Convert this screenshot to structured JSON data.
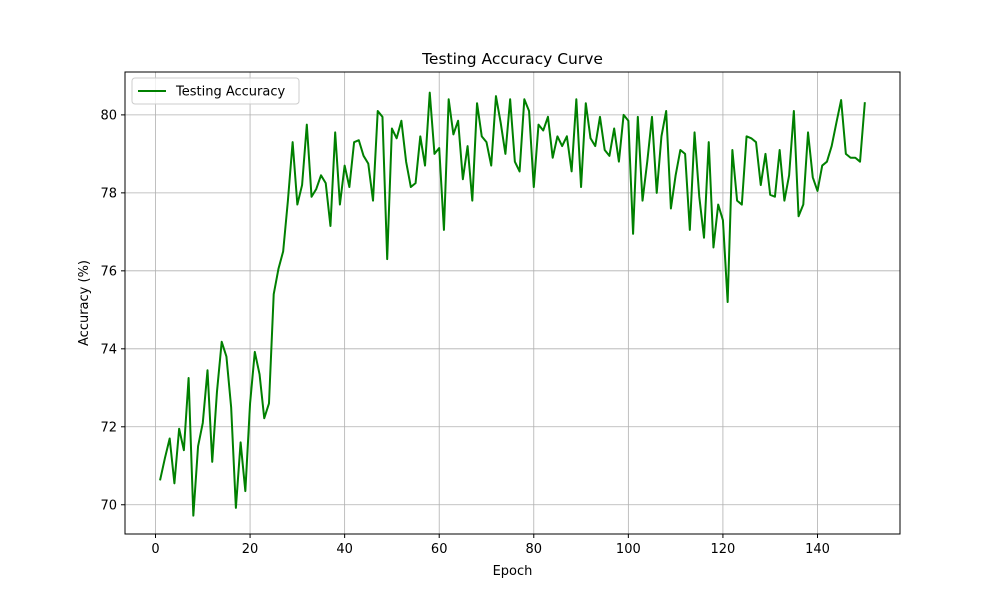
{
  "chart_data": {
    "type": "line",
    "title": "Testing Accuracy Curve",
    "xlabel": "Epoch",
    "ylabel": "Accuracy (%)",
    "xlim": [
      -6.45,
      157.45
    ],
    "ylim": [
      69.25,
      81.1
    ],
    "xticks": [
      0,
      20,
      40,
      60,
      80,
      100,
      120,
      140
    ],
    "yticks": [
      70,
      72,
      74,
      76,
      78,
      80
    ],
    "grid": true,
    "legend_position": "upper-left",
    "series": [
      {
        "name": "Testing Accuracy",
        "color": "#008000",
        "x": [
          1,
          2,
          3,
          4,
          5,
          6,
          7,
          8,
          9,
          10,
          11,
          12,
          13,
          14,
          15,
          16,
          17,
          18,
          19,
          20,
          21,
          22,
          23,
          24,
          25,
          26,
          27,
          28,
          29,
          30,
          31,
          32,
          33,
          34,
          35,
          36,
          37,
          38,
          39,
          40,
          41,
          42,
          43,
          44,
          45,
          46,
          47,
          48,
          49,
          50,
          51,
          52,
          53,
          54,
          55,
          56,
          57,
          58,
          59,
          60,
          61,
          62,
          63,
          64,
          65,
          66,
          67,
          68,
          69,
          70,
          71,
          72,
          73,
          74,
          75,
          76,
          77,
          78,
          79,
          80,
          81,
          82,
          83,
          84,
          85,
          86,
          87,
          88,
          89,
          90,
          91,
          92,
          93,
          94,
          95,
          96,
          97,
          98,
          99,
          100,
          101,
          102,
          103,
          104,
          105,
          106,
          107,
          108,
          109,
          110,
          111,
          112,
          113,
          114,
          115,
          116,
          117,
          118,
          119,
          120,
          121,
          122,
          123,
          124,
          125,
          126,
          127,
          128,
          129,
          130,
          131,
          132,
          133,
          134,
          135,
          136,
          137,
          138,
          139,
          140,
          141,
          142,
          143,
          144,
          145,
          146,
          147,
          148,
          149,
          150
        ],
        "y": [
          70.65,
          71.2,
          71.7,
          70.55,
          71.95,
          71.4,
          73.25,
          69.72,
          71.5,
          72.1,
          73.45,
          71.1,
          72.9,
          74.18,
          73.8,
          72.5,
          69.92,
          71.6,
          70.35,
          72.6,
          73.92,
          73.35,
          72.22,
          72.6,
          75.4,
          76.05,
          76.5,
          77.8,
          79.3,
          77.7,
          78.2,
          79.75,
          77.9,
          78.1,
          78.45,
          78.25,
          77.15,
          79.55,
          77.7,
          78.7,
          78.15,
          79.3,
          79.35,
          78.95,
          78.75,
          77.8,
          80.1,
          79.95,
          76.3,
          79.65,
          79.4,
          79.85,
          78.8,
          78.15,
          78.25,
          79.45,
          78.7,
          80.57,
          79.0,
          79.15,
          77.05,
          80.4,
          79.5,
          79.85,
          78.35,
          79.2,
          77.8,
          80.3,
          79.45,
          79.3,
          78.7,
          80.48,
          79.8,
          79.0,
          80.4,
          78.8,
          78.55,
          80.4,
          80.1,
          78.15,
          79.75,
          79.6,
          79.95,
          78.9,
          79.45,
          79.2,
          79.45,
          78.55,
          80.4,
          78.15,
          80.3,
          79.4,
          79.2,
          79.95,
          79.1,
          78.95,
          79.65,
          78.8,
          80.0,
          79.85,
          76.95,
          79.95,
          77.8,
          78.8,
          79.95,
          78.0,
          79.45,
          80.1,
          77.6,
          78.45,
          79.1,
          79.0,
          77.05,
          79.55,
          77.9,
          76.85,
          79.3,
          76.6,
          77.7,
          77.3,
          75.2,
          79.1,
          77.8,
          77.7,
          79.45,
          79.4,
          79.3,
          78.2,
          79.0,
          77.95,
          77.9,
          79.1,
          77.8,
          78.45,
          80.1,
          77.4,
          77.7,
          79.55,
          78.4,
          78.05,
          78.7,
          78.8,
          79.2,
          79.8,
          80.38,
          79.0,
          78.9,
          78.9,
          78.8,
          80.3
        ]
      }
    ]
  }
}
